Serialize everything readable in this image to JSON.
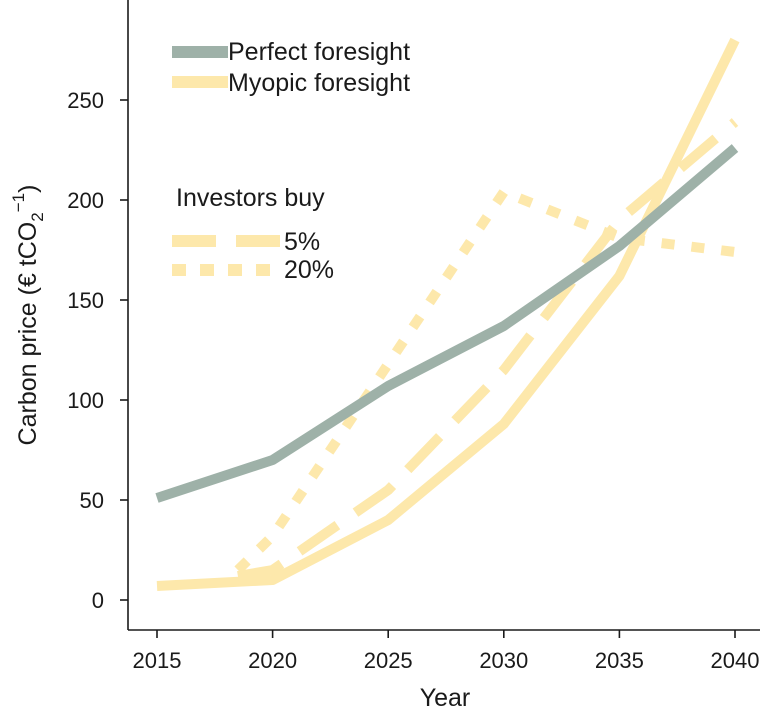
{
  "chart_data": {
    "type": "line",
    "xlabel": "Year",
    "ylabel": {
      "main": "Carbon price (€ tCO",
      "sub": "2",
      "sup": "−1",
      "close": ")"
    },
    "x": [
      2015,
      2020,
      2025,
      2030,
      2035,
      2040
    ],
    "xlim": [
      2015,
      2040
    ],
    "ylim": [
      0,
      260
    ],
    "xticks": [
      "2015",
      "2020",
      "2025",
      "2030",
      "2035",
      "2040"
    ],
    "yticks": [
      "0",
      "50",
      "100",
      "150",
      "200",
      "250"
    ],
    "grid": false,
    "colors": {
      "perfect": "#9eb1a8",
      "myopic": "#fde8ab",
      "axis": "#1a1a1a"
    },
    "legend": {
      "placement": "top-left",
      "perfect_label": "Perfect foresight",
      "myopic_label": "Myopic foresight",
      "investors_title": "Investors buy",
      "dashed_label": "5%",
      "dotted_label": "20%"
    },
    "series": [
      {
        "name": "Perfect foresight",
        "key": "perfect",
        "style": "solid",
        "points": [
          [
            2015,
            51
          ],
          [
            2020,
            70
          ],
          [
            2025,
            107
          ],
          [
            2030,
            137
          ],
          [
            2035,
            177
          ],
          [
            2040,
            226
          ]
        ]
      },
      {
        "name": "Myopic foresight",
        "key": "myopic",
        "style": "solid",
        "points": [
          [
            2015,
            7
          ],
          [
            2020,
            10
          ],
          [
            2025,
            40
          ],
          [
            2030,
            88
          ],
          [
            2035,
            162
          ],
          [
            2040,
            280
          ]
        ]
      },
      {
        "name": "5%",
        "key": "myopic",
        "style": "dashed",
        "points": [
          [
            2018.5,
            12
          ],
          [
            2020,
            15
          ],
          [
            2025,
            55
          ],
          [
            2030,
            115
          ],
          [
            2035,
            190
          ],
          [
            2040,
            239
          ]
        ]
      },
      {
        "name": "20%",
        "key": "myopic",
        "style": "dotted",
        "points": [
          [
            2018.5,
            15
          ],
          [
            2020,
            32
          ],
          [
            2025,
            118
          ],
          [
            2030,
            204
          ],
          [
            2035,
            181
          ],
          [
            2040,
            174
          ]
        ]
      }
    ]
  }
}
